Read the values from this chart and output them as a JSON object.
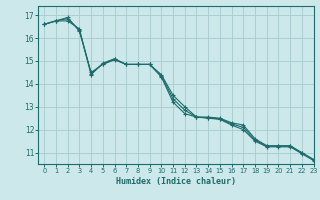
{
  "title": "",
  "xlabel": "Humidex (Indice chaleur)",
  "bg_color": "#cce8ea",
  "grid_color": "#aacfd2",
  "line_color": "#1f6b6b",
  "xlim": [
    -0.5,
    23
  ],
  "ylim": [
    10.5,
    17.4
  ],
  "yticks": [
    11,
    12,
    13,
    14,
    15,
    16,
    17
  ],
  "xticks": [
    0,
    1,
    2,
    3,
    4,
    5,
    6,
    7,
    8,
    9,
    10,
    11,
    12,
    13,
    14,
    15,
    16,
    17,
    18,
    19,
    20,
    21,
    22,
    23
  ],
  "series": [
    [
      16.6,
      16.75,
      16.75,
      16.4,
      14.4,
      14.9,
      15.1,
      14.85,
      14.85,
      14.85,
      14.4,
      13.5,
      13.0,
      12.55,
      12.55,
      12.5,
      12.3,
      12.2,
      11.6,
      11.3,
      11.3,
      11.3,
      11.0,
      10.7
    ],
    [
      16.6,
      16.75,
      16.9,
      16.3,
      14.5,
      14.85,
      15.05,
      14.85,
      14.85,
      14.85,
      14.3,
      13.2,
      12.7,
      12.55,
      12.5,
      12.45,
      12.2,
      12.0,
      11.5,
      11.25,
      11.25,
      11.25,
      10.95,
      10.65
    ],
    [
      16.6,
      16.75,
      16.85,
      16.35,
      14.45,
      14.87,
      15.07,
      14.85,
      14.85,
      14.85,
      14.35,
      13.35,
      12.85,
      12.55,
      12.52,
      12.47,
      12.25,
      12.1,
      11.55,
      11.275,
      11.275,
      11.275,
      10.975,
      10.675
    ]
  ]
}
